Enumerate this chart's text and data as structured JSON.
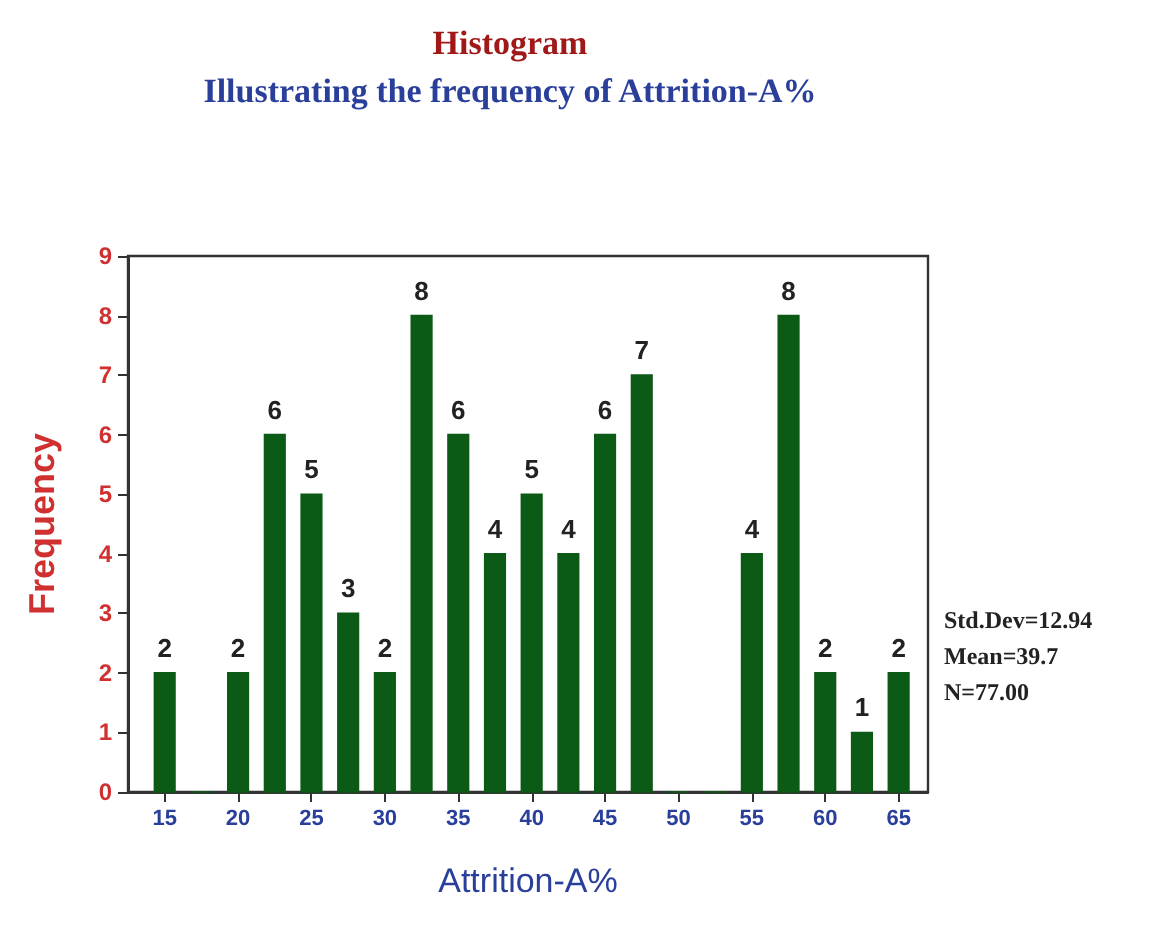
{
  "chart_data": {
    "type": "histogram",
    "title": "Histogram",
    "subtitle": "Illustrating the frequency of Attrition-A%",
    "xlabel": "Attrition-A%",
    "ylabel": "Frequency",
    "bins": [
      13.75,
      16.25,
      18.75,
      21.25,
      23.75,
      26.25,
      28.75,
      31.25,
      33.75,
      36.25,
      38.75,
      41.25,
      43.75,
      46.25,
      48.75,
      51.25,
      53.75,
      56.25,
      58.75,
      61.25,
      63.75,
      66.25
    ],
    "values": [
      2,
      0,
      2,
      6,
      5,
      3,
      2,
      8,
      6,
      4,
      5,
      4,
      6,
      7,
      0,
      0,
      4,
      8,
      2,
      1,
      2
    ],
    "value_labels": [
      "2",
      null,
      "2",
      "6",
      "5",
      "3",
      "2",
      "8",
      "6",
      "4",
      "5",
      "4",
      "6",
      "7",
      null,
      null,
      "4",
      "8",
      "2",
      "1",
      "2"
    ],
    "color": "#0b5a16",
    "xlim": [
      12.5,
      67
    ],
    "xticks": [
      15,
      20,
      25,
      30,
      35,
      40,
      45,
      50,
      55,
      60,
      65
    ],
    "ylim": [
      0,
      9
    ],
    "yticks": [
      0,
      1,
      2,
      3,
      4,
      5,
      6,
      7,
      8,
      9
    ],
    "grid": false,
    "annotations": [
      "Std.Dev=12.94",
      "Mean=39.7",
      "N=77.00"
    ]
  }
}
